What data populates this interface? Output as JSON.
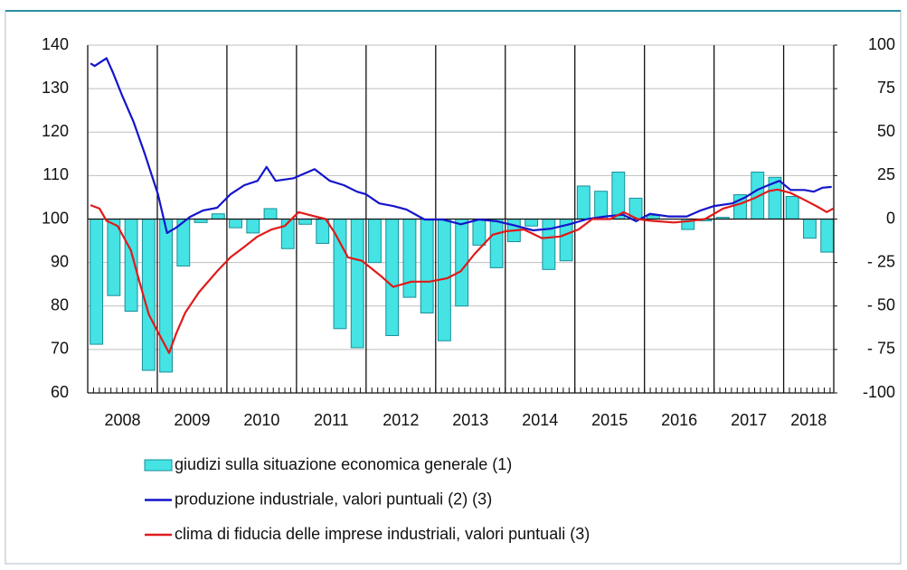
{
  "chart_data": {
    "type": "combo",
    "categories": [
      "2008",
      "2009",
      "2010",
      "2011",
      "2012",
      "2013",
      "2014",
      "2015",
      "2016",
      "2017",
      "2018"
    ],
    "xlim": [
      2008,
      2018.72
    ],
    "xticks": [
      2009,
      2010,
      2011,
      2012,
      2013,
      2014,
      2015,
      2016,
      2017,
      2018
    ],
    "ylim": [
      60,
      140
    ],
    "yticks": [
      60,
      70,
      80,
      90,
      100,
      110,
      120,
      130,
      140
    ],
    "y2lim": [
      -100,
      100
    ],
    "y2ticks": [
      -100,
      {
        "value": -75,
        "label": "- 75"
      },
      {
        "value": -50,
        "label": "- 50"
      },
      {
        "value": -25,
        "label": "- 25"
      },
      0,
      25,
      50,
      75,
      100
    ],
    "grid": true,
    "series": [
      {
        "name": "giudizi sulla situazione economica generale (1)",
        "type": "bar",
        "axis": "y2",
        "color": "#45e3e3",
        "edge": "#1a8f9a",
        "x": [
          2008.125,
          2008.375,
          2008.625,
          2008.875,
          2009.125,
          2009.375,
          2009.625,
          2009.875,
          2010.125,
          2010.375,
          2010.625,
          2010.875,
          2011.125,
          2011.375,
          2011.625,
          2011.875,
          2012.125,
          2012.375,
          2012.625,
          2012.875,
          2013.125,
          2013.375,
          2013.625,
          2013.875,
          2014.125,
          2014.375,
          2014.625,
          2014.875,
          2015.125,
          2015.375,
          2015.625,
          2015.875,
          2016.125,
          2016.375,
          2016.625,
          2016.875,
          2017.125,
          2017.375,
          2017.625,
          2017.875,
          2018.125,
          2018.375,
          2018.625
        ],
        "values": [
          -72,
          -44,
          -53,
          -87,
          -88,
          -27,
          -2,
          3,
          -5,
          -8,
          6,
          -17,
          -3,
          -14,
          -63,
          -74,
          -25,
          -67,
          -45,
          -54,
          -70,
          -50,
          -15,
          -28,
          -13,
          -4,
          -29,
          -24,
          19,
          16,
          27,
          12,
          2,
          0,
          -6,
          -1,
          1,
          14,
          27,
          24,
          13,
          -11,
          -19
        ]
      },
      {
        "name": "produzione industriale, valori puntuali (2) (3)",
        "type": "line",
        "axis": "y",
        "color": "#1414cc",
        "x": [
          2008.04,
          2008.1,
          2008.27,
          2008.36,
          2008.49,
          2008.66,
          2008.82,
          2009.01,
          2009.14,
          2009.27,
          2009.47,
          2009.66,
          2009.86,
          2010.05,
          2010.25,
          2010.44,
          2010.57,
          2010.7,
          2010.96,
          2011.09,
          2011.26,
          2011.48,
          2011.68,
          2011.87,
          2012.0,
          2012.19,
          2012.39,
          2012.58,
          2012.84,
          2013.1,
          2013.36,
          2013.62,
          2013.88,
          2014.14,
          2014.4,
          2014.66,
          2014.92,
          2015.18,
          2015.44,
          2015.69,
          2015.88,
          2016.08,
          2016.35,
          2016.61,
          2016.81,
          2017.0,
          2017.26,
          2017.45,
          2017.62,
          2017.78,
          2017.94,
          2018.1,
          2018.3,
          2018.43,
          2018.56,
          2018.69
        ],
        "values": [
          135.8,
          135.2,
          137,
          133.8,
          128.6,
          122.3,
          115,
          105.7,
          96.8,
          98,
          100.5,
          102,
          102.6,
          105.7,
          107.8,
          108.8,
          112,
          108.8,
          109.4,
          110.3,
          111.5,
          108.8,
          107.8,
          106.3,
          105.7,
          103.6,
          103,
          102.2,
          99.9,
          99.9,
          98.8,
          99.9,
          99.5,
          98.5,
          97.4,
          97.8,
          98.8,
          100,
          100.6,
          101,
          99.5,
          101.2,
          100.6,
          100.6,
          102,
          103,
          103.6,
          105,
          106.7,
          107.8,
          108.8,
          106.7,
          106.7,
          106.3,
          107.2,
          107.4
        ]
      },
      {
        "name": "clima di fiducia delle imprese industriali, valori puntuali (3)",
        "type": "line",
        "axis": "y2",
        "color": "#e01a1a",
        "x": [
          2008.04,
          2008.17,
          2008.27,
          2008.43,
          2008.62,
          2008.75,
          2008.88,
          2009.01,
          2009.17,
          2009.27,
          2009.4,
          2009.6,
          2009.86,
          2010.05,
          2010.25,
          2010.44,
          2010.64,
          2010.83,
          2011.03,
          2011.22,
          2011.42,
          2011.55,
          2011.74,
          2011.94,
          2012.19,
          2012.39,
          2012.65,
          2012.91,
          2013.17,
          2013.36,
          2013.56,
          2013.82,
          2014.01,
          2014.27,
          2014.53,
          2014.79,
          2015.05,
          2015.25,
          2015.51,
          2015.7,
          2015.9,
          2016.09,
          2016.42,
          2016.68,
          2016.87,
          2017.13,
          2017.39,
          2017.58,
          2017.78,
          2017.91,
          2018.1,
          2018.3,
          2018.49,
          2018.62,
          2018.71
        ],
        "values": [
          8,
          6,
          -1,
          -4,
          -18,
          -37,
          -55,
          -65,
          -77,
          -66,
          -54,
          -42,
          -30,
          -22,
          -16,
          -10,
          -6,
          -4,
          4,
          2,
          0,
          -8,
          -22,
          -24,
          -32,
          -39,
          -36,
          -36,
          -34,
          -30,
          -20,
          -9,
          -7,
          -6,
          -11,
          -10,
          -6,
          0,
          0,
          4,
          0,
          -1,
          -2,
          -1,
          0,
          6,
          9,
          12,
          16,
          17,
          15,
          11,
          7,
          4,
          6
        ]
      }
    ]
  }
}
